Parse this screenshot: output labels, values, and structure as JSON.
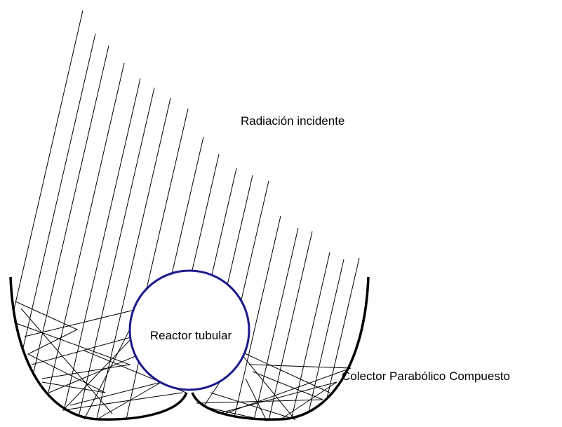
{
  "labels": {
    "incident": "Radiación incidente",
    "reactor": "Reactor tubular",
    "collector": "Colector Parabólico Compuesto"
  }
}
